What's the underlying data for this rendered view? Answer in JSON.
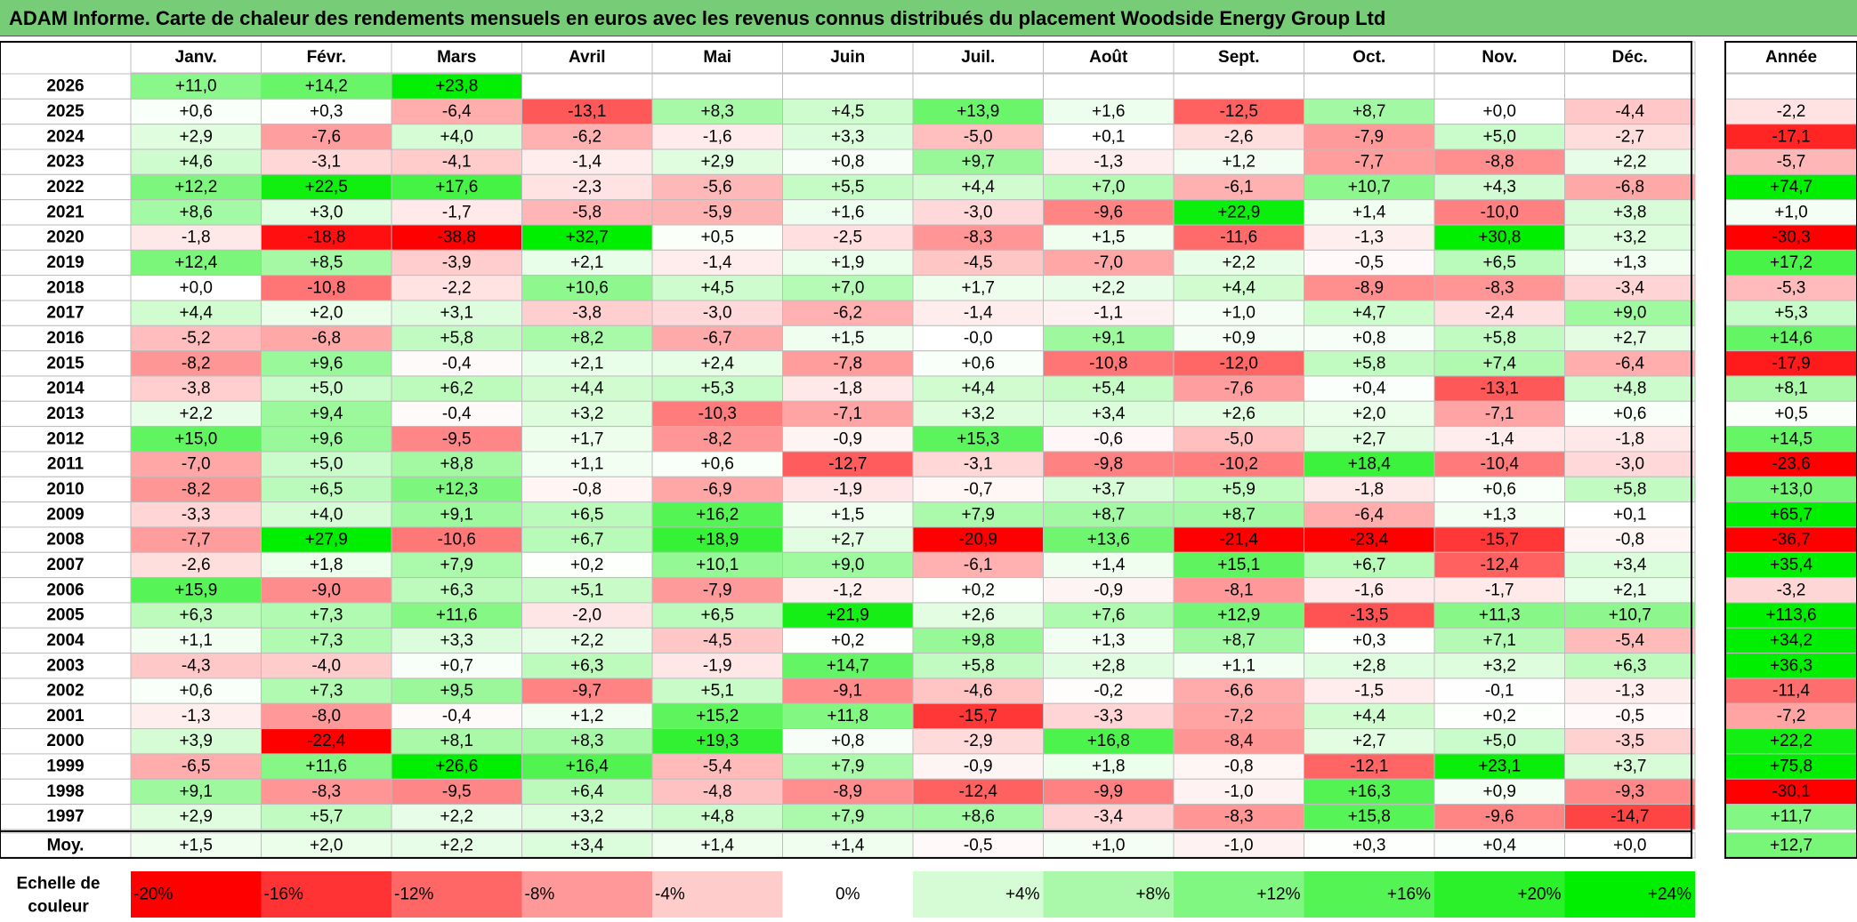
{
  "title": "ADAM Informe. Carte de chaleur des rendements mensuels en euros avec les revenus connus distribués du placement Woodside Energy Group Ltd",
  "chart_data": {
    "type": "heatmap",
    "title": "ADAM Informe. Carte de chaleur des rendements mensuels en euros avec les revenus connus distribués du placement Woodside Energy Group Ltd",
    "columns": [
      "Janv.",
      "Févr.",
      "Mars",
      "Avril",
      "Mai",
      "Juin",
      "Juil.",
      "Août",
      "Sept.",
      "Oct.",
      "Nov.",
      "Déc."
    ],
    "year_header": "Année",
    "avg_label": "Moy.",
    "rows": [
      {
        "year": "2026",
        "values": [
          "+11,0",
          "+14,2",
          "+23,8",
          "",
          "",
          "",
          "",
          "",
          "",
          "",
          "",
          ""
        ],
        "total": ""
      },
      {
        "year": "2025",
        "values": [
          "+0,6",
          "+0,3",
          "-6,4",
          "-13,1",
          "+8,3",
          "+4,5",
          "+13,9",
          "+1,6",
          "-12,5",
          "+8,7",
          "+0,0",
          "-4,4"
        ],
        "total": "-2,2"
      },
      {
        "year": "2024",
        "values": [
          "+2,9",
          "-7,6",
          "+4,0",
          "-6,2",
          "-1,6",
          "+3,3",
          "-5,0",
          "+0,1",
          "-2,6",
          "-7,9",
          "+5,0",
          "-2,7"
        ],
        "total": "-17,1"
      },
      {
        "year": "2023",
        "values": [
          "+4,6",
          "-3,1",
          "-4,1",
          "-1,4",
          "+2,9",
          "+0,8",
          "+9,7",
          "-1,3",
          "+1,2",
          "-7,7",
          "-8,8",
          "+2,2"
        ],
        "total": "-5,7"
      },
      {
        "year": "2022",
        "values": [
          "+12,2",
          "+22,5",
          "+17,6",
          "-2,3",
          "-5,6",
          "+5,5",
          "+4,4",
          "+7,0",
          "-6,1",
          "+10,7",
          "+4,3",
          "-6,8"
        ],
        "total": "+74,7"
      },
      {
        "year": "2021",
        "values": [
          "+8,6",
          "+3,0",
          "-1,7",
          "-5,8",
          "-5,9",
          "+1,6",
          "-3,0",
          "-9,6",
          "+22,9",
          "+1,4",
          "-10,0",
          "+3,8"
        ],
        "total": "+1,0"
      },
      {
        "year": "2020",
        "values": [
          "-1,8",
          "-18,8",
          "-38,8",
          "+32,7",
          "+0,5",
          "-2,5",
          "-8,3",
          "+1,5",
          "-11,6",
          "-1,3",
          "+30,8",
          "+3,2"
        ],
        "total": "-30,3"
      },
      {
        "year": "2019",
        "values": [
          "+12,4",
          "+8,5",
          "-3,9",
          "+2,1",
          "-1,4",
          "+1,9",
          "-4,5",
          "-7,0",
          "+2,2",
          "-0,5",
          "+6,5",
          "+1,3"
        ],
        "total": "+17,2"
      },
      {
        "year": "2018",
        "values": [
          "+0,0",
          "-10,8",
          "-2,2",
          "+10,6",
          "+4,5",
          "+7,0",
          "+1,7",
          "+2,2",
          "+4,4",
          "-8,9",
          "-8,3",
          "-3,4"
        ],
        "total": "-5,3"
      },
      {
        "year": "2017",
        "values": [
          "+4,4",
          "+2,0",
          "+3,1",
          "-3,8",
          "-3,0",
          "-6,2",
          "-1,4",
          "-1,1",
          "+1,0",
          "+4,7",
          "-2,4",
          "+9,0"
        ],
        "total": "+5,3"
      },
      {
        "year": "2016",
        "values": [
          "-5,2",
          "-6,8",
          "+5,8",
          "+8,2",
          "-6,7",
          "+1,5",
          "-0,0",
          "+9,1",
          "+0,9",
          "+0,8",
          "+5,8",
          "+2,7"
        ],
        "total": "+14,6"
      },
      {
        "year": "2015",
        "values": [
          "-8,2",
          "+9,6",
          "-0,4",
          "+2,1",
          "+2,4",
          "-7,8",
          "+0,6",
          "-10,8",
          "-12,0",
          "+5,8",
          "+7,4",
          "-6,4"
        ],
        "total": "-17,9"
      },
      {
        "year": "2014",
        "values": [
          "-3,8",
          "+5,0",
          "+6,2",
          "+4,4",
          "+5,3",
          "-1,8",
          "+4,4",
          "+5,4",
          "-7,6",
          "+0,4",
          "-13,1",
          "+4,8"
        ],
        "total": "+8,1"
      },
      {
        "year": "2013",
        "values": [
          "+2,2",
          "+9,4",
          "-0,4",
          "+3,2",
          "-10,3",
          "-7,1",
          "+3,2",
          "+3,4",
          "+2,6",
          "+2,0",
          "-7,1",
          "+0,6"
        ],
        "total": "+0,5"
      },
      {
        "year": "2012",
        "values": [
          "+15,0",
          "+9,6",
          "-9,5",
          "+1,7",
          "-8,2",
          "-0,9",
          "+15,3",
          "-0,6",
          "-5,0",
          "+2,7",
          "-1,4",
          "-1,8"
        ],
        "total": "+14,5"
      },
      {
        "year": "2011",
        "values": [
          "-7,0",
          "+5,0",
          "+8,8",
          "+1,1",
          "+0,6",
          "-12,7",
          "-3,1",
          "-9,8",
          "-10,2",
          "+18,4",
          "-10,4",
          "-3,0"
        ],
        "total": "-23,6"
      },
      {
        "year": "2010",
        "values": [
          "-8,2",
          "+6,5",
          "+12,3",
          "-0,8",
          "-6,9",
          "-1,9",
          "-0,7",
          "+3,7",
          "+5,9",
          "-1,8",
          "+0,6",
          "+5,8"
        ],
        "total": "+13,0"
      },
      {
        "year": "2009",
        "values": [
          "-3,3",
          "+4,0",
          "+9,1",
          "+6,5",
          "+16,2",
          "+1,5",
          "+7,9",
          "+8,7",
          "+8,7",
          "-6,4",
          "+1,3",
          "+0,1"
        ],
        "total": "+65,7"
      },
      {
        "year": "2008",
        "values": [
          "-7,7",
          "+27,9",
          "-10,6",
          "+6,7",
          "+18,9",
          "+2,7",
          "-20,9",
          "+13,6",
          "-21,4",
          "-23,4",
          "-15,7",
          "-0,8"
        ],
        "total": "-36,7"
      },
      {
        "year": "2007",
        "values": [
          "-2,6",
          "+1,8",
          "+7,9",
          "+0,2",
          "+10,1",
          "+9,0",
          "-6,1",
          "+1,4",
          "+15,1",
          "+6,7",
          "-12,4",
          "+3,4"
        ],
        "total": "+35,4"
      },
      {
        "year": "2006",
        "values": [
          "+15,9",
          "-9,0",
          "+6,3",
          "+5,1",
          "-7,9",
          "-1,2",
          "+0,2",
          "-0,9",
          "-8,1",
          "-1,6",
          "-1,7",
          "+2,1"
        ],
        "total": "-3,2"
      },
      {
        "year": "2005",
        "values": [
          "+6,3",
          "+7,3",
          "+11,6",
          "-2,0",
          "+6,5",
          "+21,9",
          "+2,6",
          "+7,6",
          "+12,9",
          "-13,5",
          "+11,3",
          "+10,7"
        ],
        "total": "+113,6"
      },
      {
        "year": "2004",
        "values": [
          "+1,1",
          "+7,3",
          "+3,3",
          "+2,2",
          "-4,5",
          "+0,2",
          "+9,8",
          "+1,3",
          "+8,7",
          "+0,3",
          "+7,1",
          "-5,4"
        ],
        "total": "+34,2"
      },
      {
        "year": "2003",
        "values": [
          "-4,3",
          "-4,0",
          "+0,7",
          "+6,3",
          "-1,9",
          "+14,7",
          "+5,8",
          "+2,8",
          "+1,1",
          "+2,8",
          "+3,2",
          "+6,3"
        ],
        "total": "+36,3"
      },
      {
        "year": "2002",
        "values": [
          "+0,6",
          "+7,3",
          "+9,5",
          "-9,7",
          "+5,1",
          "-9,1",
          "-4,6",
          "-0,2",
          "-6,6",
          "-1,5",
          "-0,1",
          "-1,3"
        ],
        "total": "-11,4"
      },
      {
        "year": "2001",
        "values": [
          "-1,3",
          "-8,0",
          "-0,4",
          "+1,2",
          "+15,2",
          "+11,8",
          "-15,7",
          "-3,3",
          "-7,2",
          "+4,4",
          "+0,2",
          "-0,5"
        ],
        "total": "-7,2"
      },
      {
        "year": "2000",
        "values": [
          "+3,9",
          "-22,4",
          "+8,1",
          "+8,3",
          "+19,3",
          "+0,8",
          "-2,9",
          "+16,8",
          "-8,4",
          "+2,7",
          "+5,0",
          "-3,5"
        ],
        "total": "+22,2"
      },
      {
        "year": "1999",
        "values": [
          "-6,5",
          "+11,6",
          "+26,6",
          "+16,4",
          "-5,4",
          "+7,9",
          "-0,9",
          "+1,8",
          "-0,8",
          "-12,1",
          "+23,1",
          "+3,7"
        ],
        "total": "+75,8"
      },
      {
        "year": "1998",
        "values": [
          "+9,1",
          "-8,3",
          "-9,5",
          "+6,4",
          "-4,8",
          "-8,9",
          "-12,4",
          "-9,9",
          "-1,0",
          "+16,3",
          "+0,9",
          "-9,3"
        ],
        "total": "-30,1"
      },
      {
        "year": "1997",
        "values": [
          "+2,9",
          "+5,7",
          "+2,2",
          "+3,2",
          "+4,8",
          "+7,9",
          "+8,6",
          "-3,4",
          "-8,3",
          "+15,8",
          "-9,6",
          "-14,7"
        ],
        "total": "+11,7"
      }
    ],
    "averages": [
      "+1,5",
      "+2,0",
      "+2,2",
      "+3,4",
      "+1,4",
      "+1,4",
      "-0,5",
      "+1,0",
      "-1,0",
      "+0,3",
      "+0,4",
      "+0,0"
    ],
    "average_total": "+12,7",
    "scale_label_line1": "Echelle de",
    "scale_label_line2": "couleur",
    "scale": [
      {
        "label": "-20%",
        "value": -20
      },
      {
        "label": "-16%",
        "value": -16
      },
      {
        "label": "-12%",
        "value": -12
      },
      {
        "label": "-8%",
        "value": -8
      },
      {
        "label": "-4%",
        "value": -4
      },
      {
        "label": "0%",
        "value": 0
      },
      {
        "label": "+4%",
        "value": 4
      },
      {
        "label": "+8%",
        "value": 8
      },
      {
        "label": "+12%",
        "value": 12
      },
      {
        "label": "+16%",
        "value": 16
      },
      {
        "label": "+20%",
        "value": 20
      },
      {
        "label": "+24%",
        "value": 24
      }
    ],
    "colors": {
      "negative_max": "#ff0000",
      "neutral": "#ffffff",
      "positive_max": "#00ee00",
      "title_bg": "#77cc77"
    }
  }
}
